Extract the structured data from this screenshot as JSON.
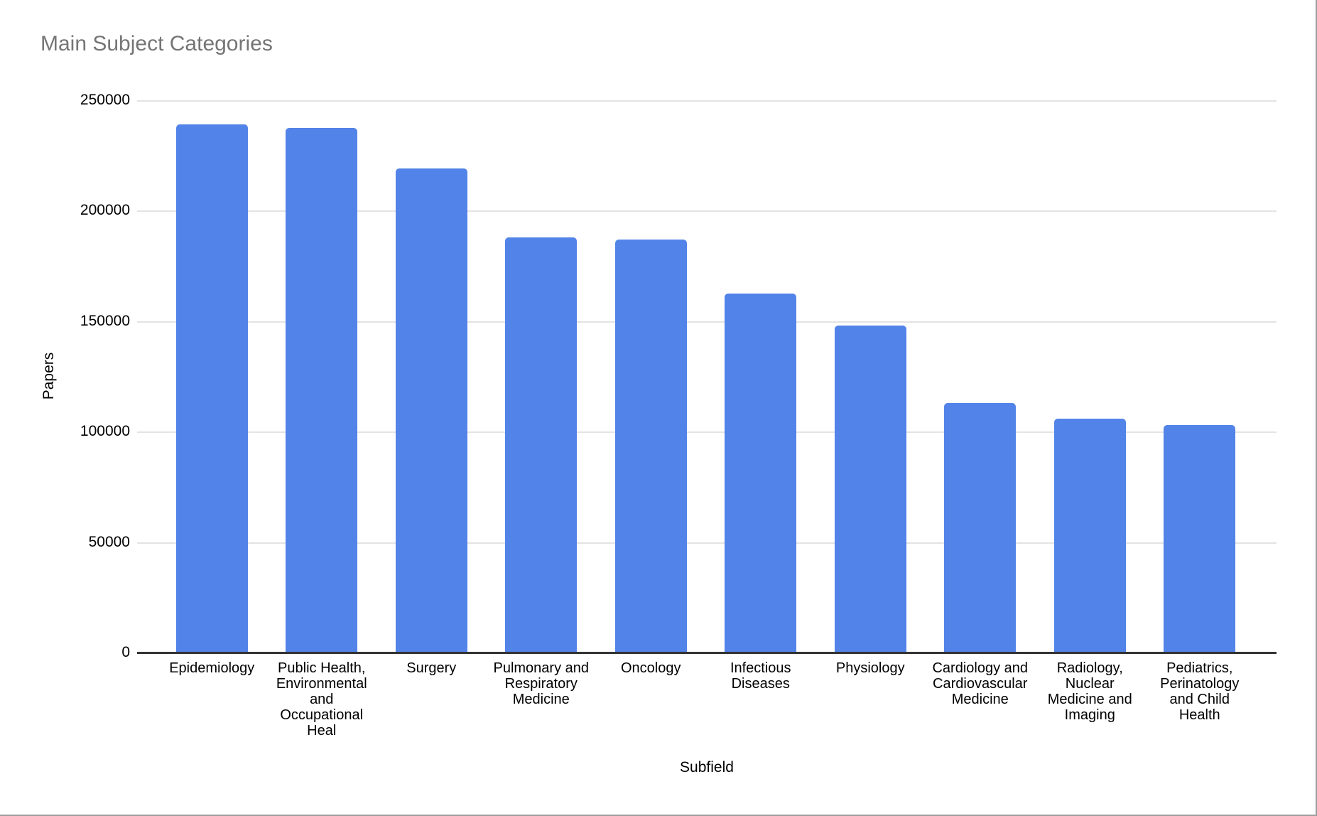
{
  "window": {
    "background_color": "#ffffff",
    "border_color": "#9e9e9e"
  },
  "chart_data": {
    "type": "bar",
    "title": "Main Subject Categories",
    "title_color": "#757575",
    "xlabel": "Subfield",
    "ylabel": "Papers",
    "ylim": [
      0,
      250000
    ],
    "ytick_labels": [
      "0",
      "50000",
      "100000",
      "150000",
      "200000",
      "250000"
    ],
    "grid": true,
    "legend_position": "none",
    "bar_color": "#5283e8",
    "categories": [
      "Epidemiology",
      "Public Health, Environmental and Occupational Heal",
      "Surgery",
      "Pulmonary and Respiratory Medicine",
      "Oncology",
      "Infectious Diseases",
      "Physiology",
      "Cardiology and Cardiovascular Medicine",
      "Radiology, Nuclear Medicine and Imaging",
      "Pediatrics, Perinatology and Child Health"
    ],
    "category_label_lines": [
      [
        "Epidemiology"
      ],
      [
        "Public Health,",
        "Environmental",
        "and",
        "Occupational",
        "Heal"
      ],
      [
        "Surgery"
      ],
      [
        "Pulmonary and",
        "Respiratory",
        "Medicine"
      ],
      [
        "Oncology"
      ],
      [
        "Infectious",
        "Diseases"
      ],
      [
        "Physiology"
      ],
      [
        "Cardiology and",
        "Cardiovascular",
        "Medicine"
      ],
      [
        "Radiology,",
        "Nuclear",
        "Medicine and",
        "Imaging"
      ],
      [
        "Pediatrics,",
        "Perinatology",
        "and Child",
        "Health"
      ]
    ],
    "values": [
      239000,
      237500,
      219000,
      188000,
      187000,
      162500,
      148000,
      113000,
      106000,
      103000
    ]
  }
}
